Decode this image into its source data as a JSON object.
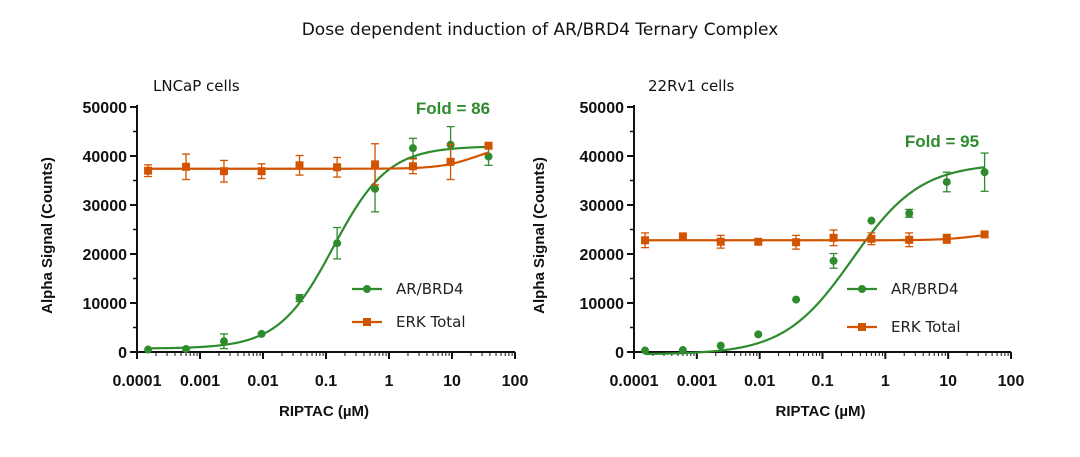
{
  "title": "Dose dependent induction of AR/BRD4 Ternary Complex",
  "colors": {
    "ar_brd4": "#2e8b2e",
    "erk_total": "#d35400",
    "axis": "#111111"
  },
  "chart_data": [
    {
      "type": "scatter",
      "panel_label": "LNCaP cells",
      "annotation": "Fold = 86",
      "xlabel": "RIPTAC (µM)",
      "ylabel": "Alpha Signal (Counts)",
      "xscale": "log",
      "xlim": [
        0.0001,
        100
      ],
      "ylim": [
        0,
        50000
      ],
      "xticks": [
        "0.0001",
        "0.001",
        "0.01",
        "0.1",
        "1",
        "10",
        "100"
      ],
      "yticks": [
        "0",
        "10000",
        "20000",
        "30000",
        "40000",
        "50000"
      ],
      "legend_position": "lower-right",
      "grid": false,
      "series": [
        {
          "name": "AR/BRD4",
          "marker": "circle",
          "x": [
            0.00015,
            0.0006,
            0.0024,
            0.0095,
            0.038,
            0.15,
            0.6,
            2.4,
            9.5,
            38
          ],
          "y": [
            500,
            600,
            2200,
            3700,
            11000,
            22200,
            33300,
            41600,
            42300,
            39900
          ],
          "err": [
            0,
            0,
            1500,
            0,
            700,
            3200,
            4700,
            2000,
            3700,
            1800
          ],
          "fit": {
            "bottom": 700,
            "top": 42000,
            "ec50": 0.13,
            "hill": 1.0
          }
        },
        {
          "name": "ERK Total",
          "marker": "square",
          "x": [
            0.00015,
            0.0006,
            0.0024,
            0.0095,
            0.038,
            0.15,
            0.6,
            2.4,
            9.5,
            38
          ],
          "y": [
            37000,
            37800,
            36900,
            36900,
            38100,
            37700,
            38300,
            37900,
            38800,
            42100
          ],
          "err": [
            1200,
            2600,
            2200,
            1500,
            2000,
            2000,
            4200,
            1500,
            3600,
            0
          ],
          "fit": {
            "bottom": 37400,
            "top": 42500,
            "ec50": 25,
            "hill": 1.5
          }
        }
      ]
    },
    {
      "type": "scatter",
      "panel_label": "22Rv1 cells",
      "annotation": "Fold = 95",
      "xlabel": "RIPTAC (µM)",
      "ylabel": "Alpha Signal (Counts)",
      "xscale": "log",
      "xlim": [
        0.0001,
        100
      ],
      "ylim": [
        0,
        50000
      ],
      "xticks": [
        "0.0001",
        "0.001",
        "0.01",
        "0.1",
        "1",
        "10",
        "100"
      ],
      "yticks": [
        "0",
        "10000",
        "20000",
        "30000",
        "40000",
        "50000"
      ],
      "legend_position": "lower-right",
      "grid": false,
      "series": [
        {
          "name": "AR/BRD4",
          "marker": "circle",
          "x": [
            0.00015,
            0.0006,
            0.0024,
            0.0095,
            0.038,
            0.15,
            0.6,
            2.4,
            9.5,
            38
          ],
          "y": [
            300,
            400,
            1300,
            3600,
            10700,
            18600,
            26800,
            28300,
            34700,
            36700
          ],
          "err": [
            0,
            0,
            0,
            0,
            0,
            1500,
            0,
            800,
            2000,
            3900
          ],
          "fit": {
            "bottom": -500,
            "top": 38500,
            "ec50": 0.3,
            "hill": 0.8
          }
        },
        {
          "name": "ERK Total",
          "marker": "square",
          "x": [
            0.00015,
            0.0006,
            0.0024,
            0.0095,
            0.038,
            0.15,
            0.6,
            2.4,
            9.5,
            38
          ],
          "y": [
            22800,
            23600,
            22500,
            22500,
            22400,
            23300,
            23100,
            22900,
            23100,
            24000
          ],
          "err": [
            1500,
            0,
            1300,
            0,
            1400,
            1600,
            1200,
            1400,
            900,
            0
          ],
          "fit": {
            "bottom": 22800,
            "top": 24600,
            "ec50": 30,
            "hill": 1.5
          }
        }
      ]
    }
  ]
}
